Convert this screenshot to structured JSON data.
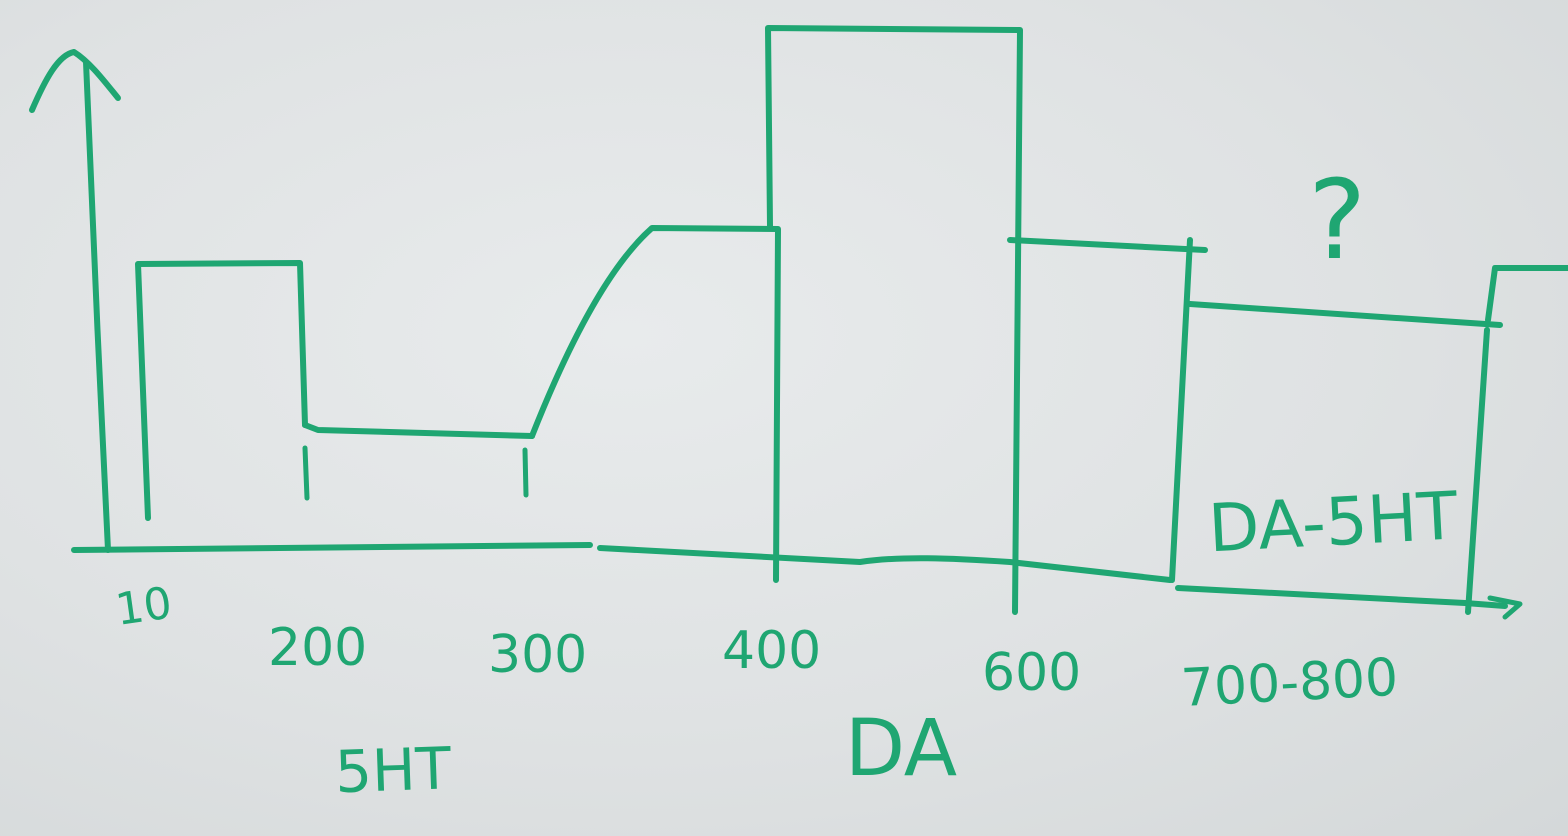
{
  "colors": {
    "marker": "#1fa672",
    "board": "#dfe2e3"
  },
  "axis": {
    "ticks": [
      "10",
      "200",
      "300",
      "400",
      "600",
      "700-800"
    ]
  },
  "labels": {
    "group_left": "5HT",
    "group_middle": "DA",
    "boxed_region": "DA-5HT",
    "question": "?"
  }
}
